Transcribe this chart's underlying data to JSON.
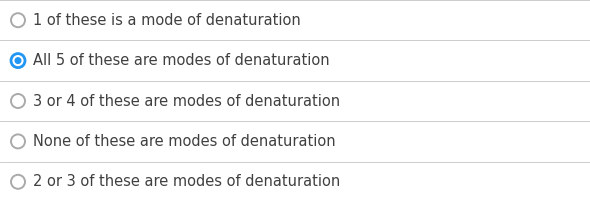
{
  "options": [
    "1 of these is a mode of denaturation",
    "All 5 of these are modes of denaturation",
    "3 or 4 of these are modes of denaturation",
    "None of these are modes of denaturation",
    "2 or 3 of these are modes of denaturation"
  ],
  "selected_index": 1,
  "background_color": "#ffffff",
  "text_color": "#404040",
  "divider_color": "#cccccc",
  "radio_unselected_edge_color": "#aaaaaa",
  "radio_selected_color": "#2196F3",
  "font_size": 10.5,
  "fig_width": 5.9,
  "fig_height": 2.02,
  "dpi": 100
}
